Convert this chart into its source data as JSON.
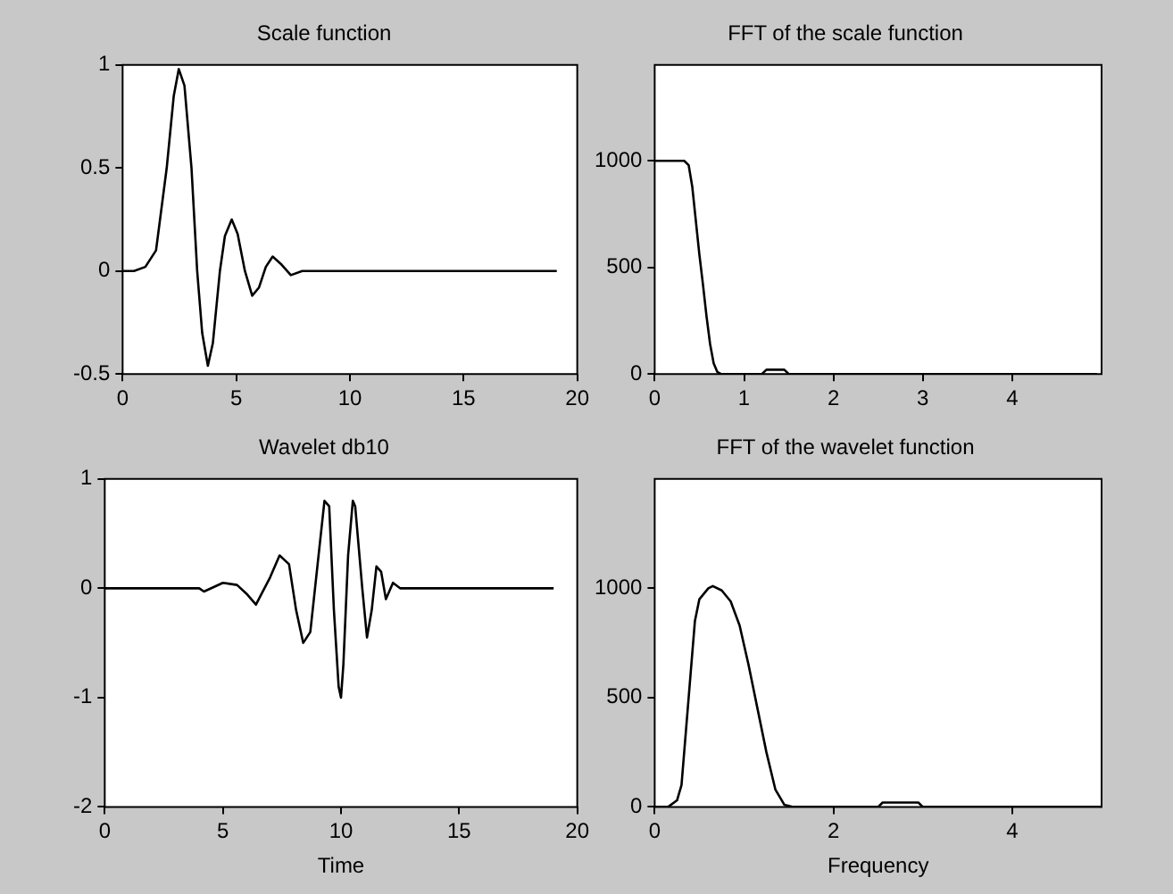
{
  "chart_data": [
    {
      "type": "line",
      "title": "Scale function",
      "color": "#000000",
      "marker": "none",
      "grid": false,
      "x": [
        0,
        0.5,
        1.0,
        1.47,
        1.94,
        2.25,
        2.47,
        2.72,
        3.03,
        3.28,
        3.5,
        3.75,
        3.97,
        4.28,
        4.5,
        4.8,
        5.06,
        5.38,
        5.7,
        6.0,
        6.3,
        6.6,
        7.0,
        7.4,
        7.9,
        19.1
      ],
      "values": [
        0,
        0,
        0.02,
        0.1,
        0.5,
        0.85,
        0.98,
        0.9,
        0.5,
        0.0,
        -0.3,
        -0.46,
        -0.35,
        0.0,
        0.17,
        0.25,
        0.18,
        0.0,
        -0.12,
        -0.08,
        0.02,
        0.07,
        0.03,
        -0.02,
        0,
        0
      ],
      "xlim": [
        0,
        20
      ],
      "xticks": [
        0,
        5,
        10,
        15,
        20
      ],
      "ylim": [
        -0.5,
        1
      ],
      "yticks": [
        -0.5,
        0,
        0.5,
        1
      ]
    },
    {
      "type": "line",
      "title": "FFT of the scale function",
      "color": "#000000",
      "marker": "none",
      "grid": false,
      "x": [
        0,
        0.33,
        0.38,
        0.42,
        0.46,
        0.5,
        0.54,
        0.58,
        0.62,
        0.66,
        0.7,
        0.74,
        1.2,
        1.25,
        1.45,
        1.5,
        1.6,
        4.95
      ],
      "values": [
        1000,
        1000,
        980,
        880,
        720,
        560,
        420,
        270,
        140,
        50,
        10,
        0,
        0,
        20,
        20,
        0,
        0,
        0
      ],
      "xlim": [
        0,
        5
      ],
      "xticks": [
        0,
        1,
        2,
        3,
        4
      ],
      "ylim": [
        0,
        1450
      ],
      "yticks": [
        0,
        500,
        1000
      ]
    },
    {
      "type": "line",
      "title": "Wavelet db10",
      "xlabel": "Time",
      "color": "#000000",
      "marker": "none",
      "grid": false,
      "x": [
        0,
        4.0,
        4.2,
        5.0,
        5.6,
        6.0,
        6.4,
        7.0,
        7.4,
        7.8,
        8.1,
        8.4,
        8.7,
        9.0,
        9.3,
        9.5,
        9.7,
        9.9,
        10.0,
        10.1,
        10.3,
        10.5,
        10.6,
        10.9,
        11.1,
        11.3,
        11.5,
        11.7,
        11.9,
        12.2,
        12.5,
        19.0
      ],
      "values": [
        0,
        0,
        -0.03,
        0.05,
        0.03,
        -0.05,
        -0.15,
        0.1,
        0.3,
        0.22,
        -0.2,
        -0.5,
        -0.4,
        0.2,
        0.8,
        0.75,
        -0.2,
        -0.9,
        -1.0,
        -0.7,
        0.3,
        0.8,
        0.75,
        0.0,
        -0.45,
        -0.2,
        0.2,
        0.15,
        -0.1,
        0.05,
        0,
        0
      ],
      "xlim": [
        0,
        20
      ],
      "xticks": [
        0,
        5,
        10,
        15,
        20
      ],
      "ylim": [
        -2,
        1
      ],
      "yticks": [
        -2,
        -1,
        0,
        1
      ]
    },
    {
      "type": "line",
      "title": "FFT of the wavelet function",
      "xlabel": "Frequency",
      "color": "#000000",
      "marker": "none",
      "grid": false,
      "x": [
        0,
        0.15,
        0.25,
        0.3,
        0.35,
        0.4,
        0.45,
        0.5,
        0.6,
        0.65,
        0.75,
        0.85,
        0.95,
        1.05,
        1.15,
        1.25,
        1.35,
        1.45,
        1.55,
        2.5,
        2.55,
        2.95,
        3.0,
        3.1,
        5.0
      ],
      "values": [
        0,
        0,
        30,
        100,
        350,
        600,
        850,
        950,
        1000,
        1010,
        990,
        940,
        830,
        650,
        450,
        250,
        80,
        10,
        0,
        0,
        20,
        20,
        0,
        0,
        0
      ],
      "xlim": [
        0,
        5
      ],
      "xticks": [
        0,
        2,
        4
      ],
      "ylim": [
        0,
        1500
      ],
      "yticks": [
        0,
        500,
        1000
      ]
    }
  ]
}
